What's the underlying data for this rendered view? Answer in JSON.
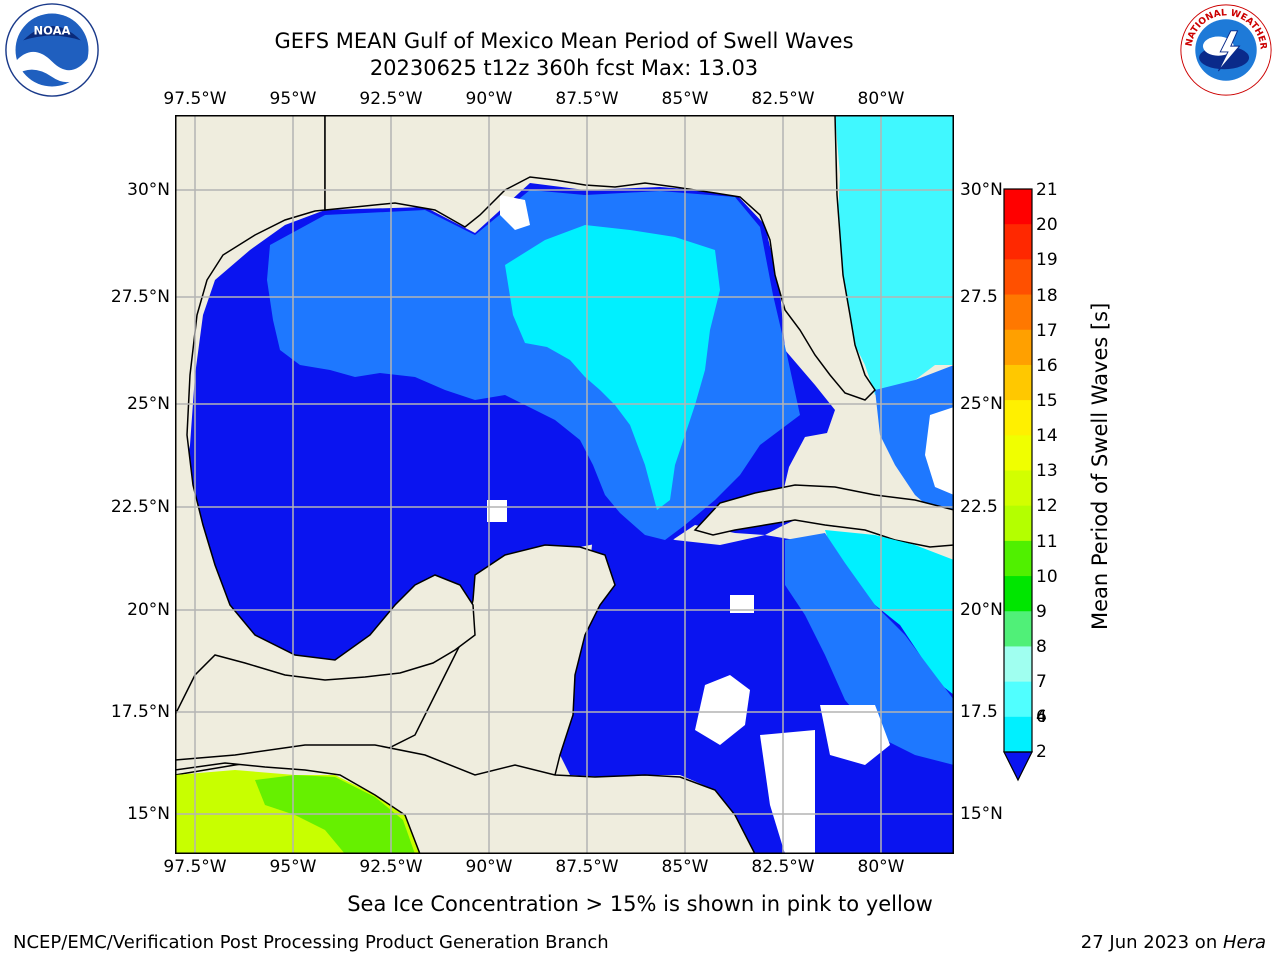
{
  "title": {
    "line1": "GEFS MEAN Gulf of Mexico Mean Period of Swell Waves",
    "line2": "20230625 t12z 360h fcst   Max: 13.03"
  },
  "map": {
    "lon_ticks_top": [
      "97.5°W",
      "95°W",
      "92.5°W",
      "90°W",
      "87.5°W",
      "85°W",
      "82.5°W",
      "80°W"
    ],
    "lon_ticks_bottom": [
      "97.5°W",
      "95°W",
      "92.5°W",
      "90°W",
      "87.5°W",
      "85°W",
      "82.5°W",
      "80°W"
    ],
    "lat_ticks_left": [
      "30°N",
      "27.5°N",
      "25°N",
      "22.5°N",
      "20°N",
      "17.5°N",
      "15°N"
    ],
    "lat_ticks_right": [
      "30°N",
      "27.5",
      "25°N",
      "22.5",
      "20°N",
      "17.5",
      "15°N"
    ],
    "colors": {
      "land": "#efedde",
      "deep_blue": "#0a14f0",
      "mid_blue": "#1e78ff",
      "cyan": "#00f0ff",
      "light_cyan": "#40f8ff",
      "grid": "#b4b4b4",
      "green": "#66f000",
      "lime": "#c8ff00"
    }
  },
  "colorbar": {
    "label": "Mean Period of Swell Waves [s]",
    "ticks": [
      "21",
      "20",
      "19",
      "18",
      "17",
      "16",
      "15",
      "14",
      "13",
      "12",
      "11",
      "10",
      "9",
      "8",
      "7",
      "6",
      "4",
      "2"
    ],
    "colors": [
      "#ff0000",
      "#ff2800",
      "#ff5000",
      "#ff7800",
      "#ffa000",
      "#ffc800",
      "#fff000",
      "#f0ff00",
      "#d2ff00",
      "#b4ff00",
      "#50f000",
      "#00e600",
      "#50f078",
      "#a0fff0",
      "#50ffff",
      "#00f0ff",
      "#00d2ff",
      "#1e78ff"
    ],
    "extend_color": "#0a14f0"
  },
  "caption": "Sea Ice Concentration > 15% is shown in pink to yellow",
  "footer": {
    "left": "NCEP/EMC/Verification Post Processing Product Generation Branch",
    "right_date": "27 Jun 2023 on ",
    "right_host": "Hera"
  },
  "logos": {
    "left_icon": "noaa-logo",
    "left_text": "NOAA",
    "right_icon": "nws-logo",
    "right_text": "NATIONAL WEATHER SERVICE"
  }
}
